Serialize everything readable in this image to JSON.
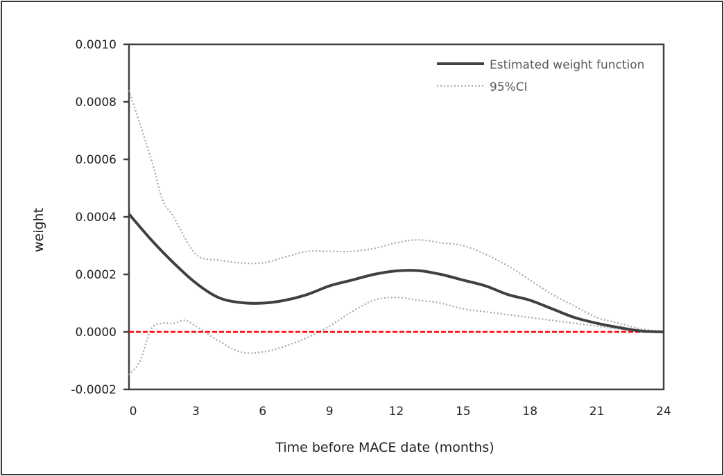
{
  "chart_data": {
    "type": "line",
    "title": "",
    "xlabel": "Time before MACE date (months)",
    "ylabel": "weight",
    "xlim": [
      0,
      24
    ],
    "ylim": [
      -0.0002,
      0.001
    ],
    "xticks": [
      0,
      3,
      6,
      9,
      12,
      15,
      18,
      21,
      24
    ],
    "yticks": [
      -0.0002,
      0.0,
      0.0002,
      0.0004,
      0.0006,
      0.0008,
      0.001
    ],
    "ytick_labels": [
      "-0.0002",
      "0.0000",
      "0.0002",
      "0.0004",
      "0.0006",
      "0.0008",
      "0.0010"
    ],
    "xtick_labels": [
      "0",
      "3",
      "6",
      "9",
      "12",
      "15",
      "18",
      "21",
      "24"
    ],
    "grid": false,
    "legend_position": "top-right",
    "series": [
      {
        "name": "Estimated weight function",
        "style": "solid",
        "color": "#404040",
        "x": [
          0,
          1,
          2,
          3,
          4,
          5,
          6,
          7,
          8,
          9,
          10,
          11,
          12,
          13,
          14,
          15,
          16,
          17,
          18,
          19,
          20,
          21,
          22,
          23,
          24
        ],
        "values": [
          0.00041,
          0.00032,
          0.00024,
          0.00017,
          0.00012,
          0.000102,
          0.0001,
          0.00011,
          0.00013,
          0.00016,
          0.00018,
          0.0002,
          0.000212,
          0.000213,
          0.0002,
          0.00018,
          0.00016,
          0.00013,
          0.00011,
          8e-05,
          5e-05,
          3e-05,
          1.5e-05,
          3e-06,
          0.0
        ]
      },
      {
        "name": "95%CI",
        "style": "dotted",
        "color": "#a6a6a6",
        "x": [
          0,
          1,
          1.5,
          2,
          3,
          4,
          5,
          6,
          7,
          8,
          9,
          10,
          11,
          12,
          13,
          14,
          15,
          16,
          17,
          18,
          19,
          20,
          21,
          22,
          23,
          24
        ],
        "values": [
          0.00084,
          0.0006,
          0.00046,
          0.0004,
          0.00027,
          0.00025,
          0.00024,
          0.00024,
          0.00026,
          0.00028,
          0.00028,
          0.00028,
          0.00029,
          0.00031,
          0.00032,
          0.00031,
          0.0003,
          0.00027,
          0.00023,
          0.00018,
          0.00013,
          9e-05,
          5e-05,
          3e-05,
          1e-05,
          0.0
        ]
      },
      {
        "name": "95%CI lower",
        "style": "dotted",
        "color": "#a6a6a6",
        "show_in_legend": false,
        "x": [
          0,
          0.5,
          1,
          1.5,
          2,
          2.5,
          3,
          4,
          5,
          6,
          7,
          8,
          9,
          10,
          11,
          12,
          13,
          14,
          15,
          16,
          17,
          18,
          19,
          20,
          21,
          22,
          23,
          24
        ],
        "values": [
          -0.00015,
          -0.0001,
          1e-05,
          3e-05,
          3e-05,
          4e-05,
          2e-05,
          -3e-05,
          -7e-05,
          -7e-05,
          -5e-05,
          -2e-05,
          2e-05,
          7e-05,
          0.00011,
          0.00012,
          0.00011,
          0.0001,
          8e-05,
          7e-05,
          6e-05,
          5e-05,
          4e-05,
          3e-05,
          2e-05,
          1e-05,
          3e-06,
          0.0
        ]
      },
      {
        "name": "zero reference",
        "style": "dashed",
        "color": "#ff0000",
        "show_in_legend": false,
        "x": [
          0,
          24
        ],
        "values": [
          0.0,
          0.0
        ]
      }
    ],
    "legend": [
      {
        "label": "Estimated weight function",
        "style": "solid",
        "color": "#404040"
      },
      {
        "label": "95%CI",
        "style": "dotted",
        "color": "#a6a6a6"
      }
    ]
  }
}
